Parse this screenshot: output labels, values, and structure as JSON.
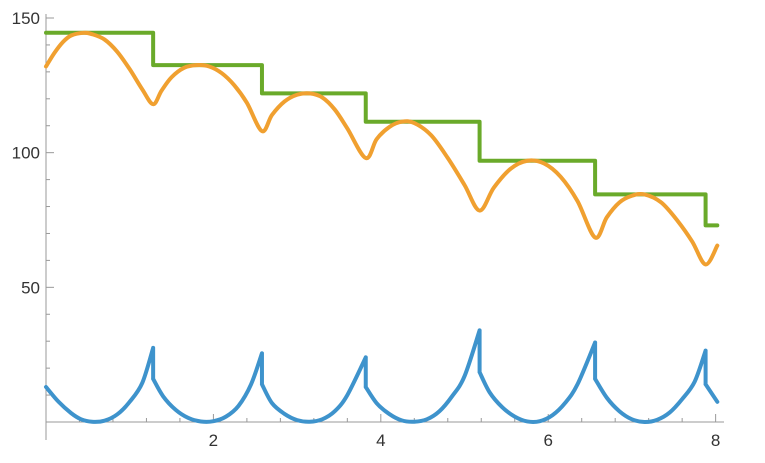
{
  "chart_data": {
    "type": "line",
    "title": "",
    "xlabel": "",
    "ylabel": "",
    "xlim": [
      0,
      8.1
    ],
    "ylim": [
      0,
      150
    ],
    "grid": false,
    "x_ticks": [
      2,
      4,
      6,
      8
    ],
    "x_tick_labels": [
      "2",
      "4",
      "6",
      "8"
    ],
    "y_ticks": [
      50,
      100,
      150
    ],
    "y_tick_labels": [
      "50",
      "100",
      "150"
    ],
    "series": [
      {
        "color": "#6aaa2a",
        "style": "step",
        "x": [
          0,
          1.28,
          1.28,
          2.58,
          2.58,
          3.82,
          3.82,
          5.18,
          5.18,
          6.56,
          6.56,
          7.88,
          7.88,
          8.02
        ],
        "values": [
          144.5,
          144.5,
          132.5,
          132.5,
          122,
          122,
          111.5,
          111.5,
          97,
          97,
          84.5,
          84.5,
          73,
          73
        ]
      },
      {
        "color": "#f0a030",
        "style": "smooth",
        "x": [
          0,
          0.1,
          0.2,
          0.3,
          0.45,
          0.55,
          0.7,
          0.85,
          1.0,
          1.15,
          1.28,
          1.38,
          1.5,
          1.65,
          1.8,
          1.95,
          2.1,
          2.25,
          2.4,
          2.58,
          2.7,
          2.85,
          3.0,
          3.15,
          3.3,
          3.45,
          3.6,
          3.82,
          3.95,
          4.1,
          4.25,
          4.4,
          4.6,
          4.8,
          5.0,
          5.18,
          5.35,
          5.55,
          5.75,
          5.95,
          6.15,
          6.35,
          6.56,
          6.7,
          6.85,
          7.0,
          7.15,
          7.35,
          7.55,
          7.72,
          7.88,
          8.02
        ],
        "values": [
          132,
          137,
          141,
          143.5,
          144.5,
          144,
          142,
          137.5,
          131,
          123.5,
          118,
          123,
          128,
          131.5,
          132.5,
          132,
          129.5,
          125,
          118.5,
          108,
          114,
          119,
          121.5,
          122,
          120.5,
          116,
          109,
          98,
          105,
          109.5,
          111.5,
          111,
          106.5,
          98,
          88,
          78.5,
          87,
          94,
          97,
          96,
          91,
          82,
          68.5,
          76,
          81.5,
          84,
          84.5,
          81.5,
          74.5,
          67,
          58.5,
          65.5
        ]
      },
      {
        "color": "#3e93cc",
        "style": "smooth",
        "x": [
          0,
          0.15,
          0.3,
          0.42,
          0.55,
          0.7,
          0.85,
          1.0,
          1.15,
          1.28,
          1.28,
          1.4,
          1.55,
          1.7,
          1.85,
          2.0,
          2.15,
          2.3,
          2.45,
          2.58,
          2.58,
          2.7,
          2.85,
          3.0,
          3.15,
          3.3,
          3.45,
          3.6,
          3.82,
          3.82,
          3.95,
          4.1,
          4.25,
          4.4,
          4.55,
          4.7,
          4.85,
          5.0,
          5.18,
          5.18,
          5.3,
          5.45,
          5.6,
          5.75,
          5.9,
          6.05,
          6.2,
          6.35,
          6.56,
          6.56,
          6.7,
          6.85,
          7.0,
          7.15,
          7.3,
          7.45,
          7.6,
          7.75,
          7.88,
          7.88,
          8.02
        ],
        "values": [
          13,
          7.5,
          3.3,
          1,
          0.1,
          0.5,
          2.8,
          7.5,
          14.5,
          27.5,
          16,
          9.5,
          4.5,
          1.5,
          0.2,
          0.3,
          2,
          6,
          14,
          25.5,
          14,
          7,
          3,
          0.7,
          0.1,
          1,
          4,
          10,
          24,
          13,
          7,
          3,
          0.6,
          0.1,
          1,
          4,
          9.5,
          17,
          34,
          18.5,
          11,
          5.5,
          2,
          0.2,
          0.3,
          2.5,
          7,
          14,
          29.5,
          16,
          9,
          4,
          1,
          0,
          0.8,
          3.5,
          8.5,
          15,
          26.5,
          14,
          7.5
        ]
      }
    ]
  }
}
